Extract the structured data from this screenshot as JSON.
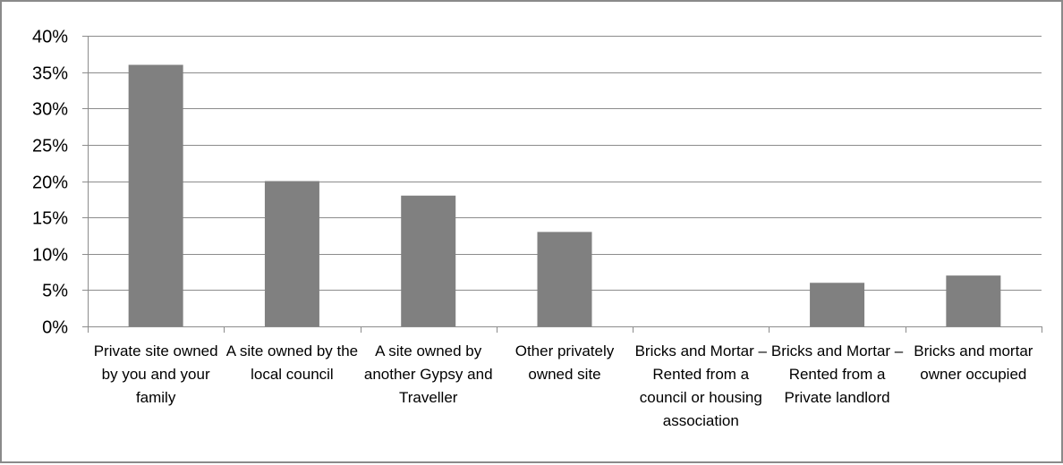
{
  "chart_data": {
    "type": "bar",
    "categories": [
      "Private site owned by you and your family",
      "A site owned by the local council",
      "A site owned by another Gypsy and Traveller",
      "Other privately owned site",
      "Bricks and Mortar –Rented from a council or housing association",
      "Bricks and Mortar –Rented from a Private landlord",
      "Bricks and mortar owner occupied"
    ],
    "values": [
      36,
      20,
      18,
      13,
      0,
      6,
      7
    ],
    "y_ticks": [
      "0%",
      "5%",
      "10%",
      "15%",
      "20%",
      "25%",
      "30%",
      "35%",
      "40%"
    ],
    "ylim": [
      0,
      40
    ],
    "grid": true,
    "legend": "none",
    "bar_color": "#808080",
    "grid_color": "#8c8c8c"
  }
}
